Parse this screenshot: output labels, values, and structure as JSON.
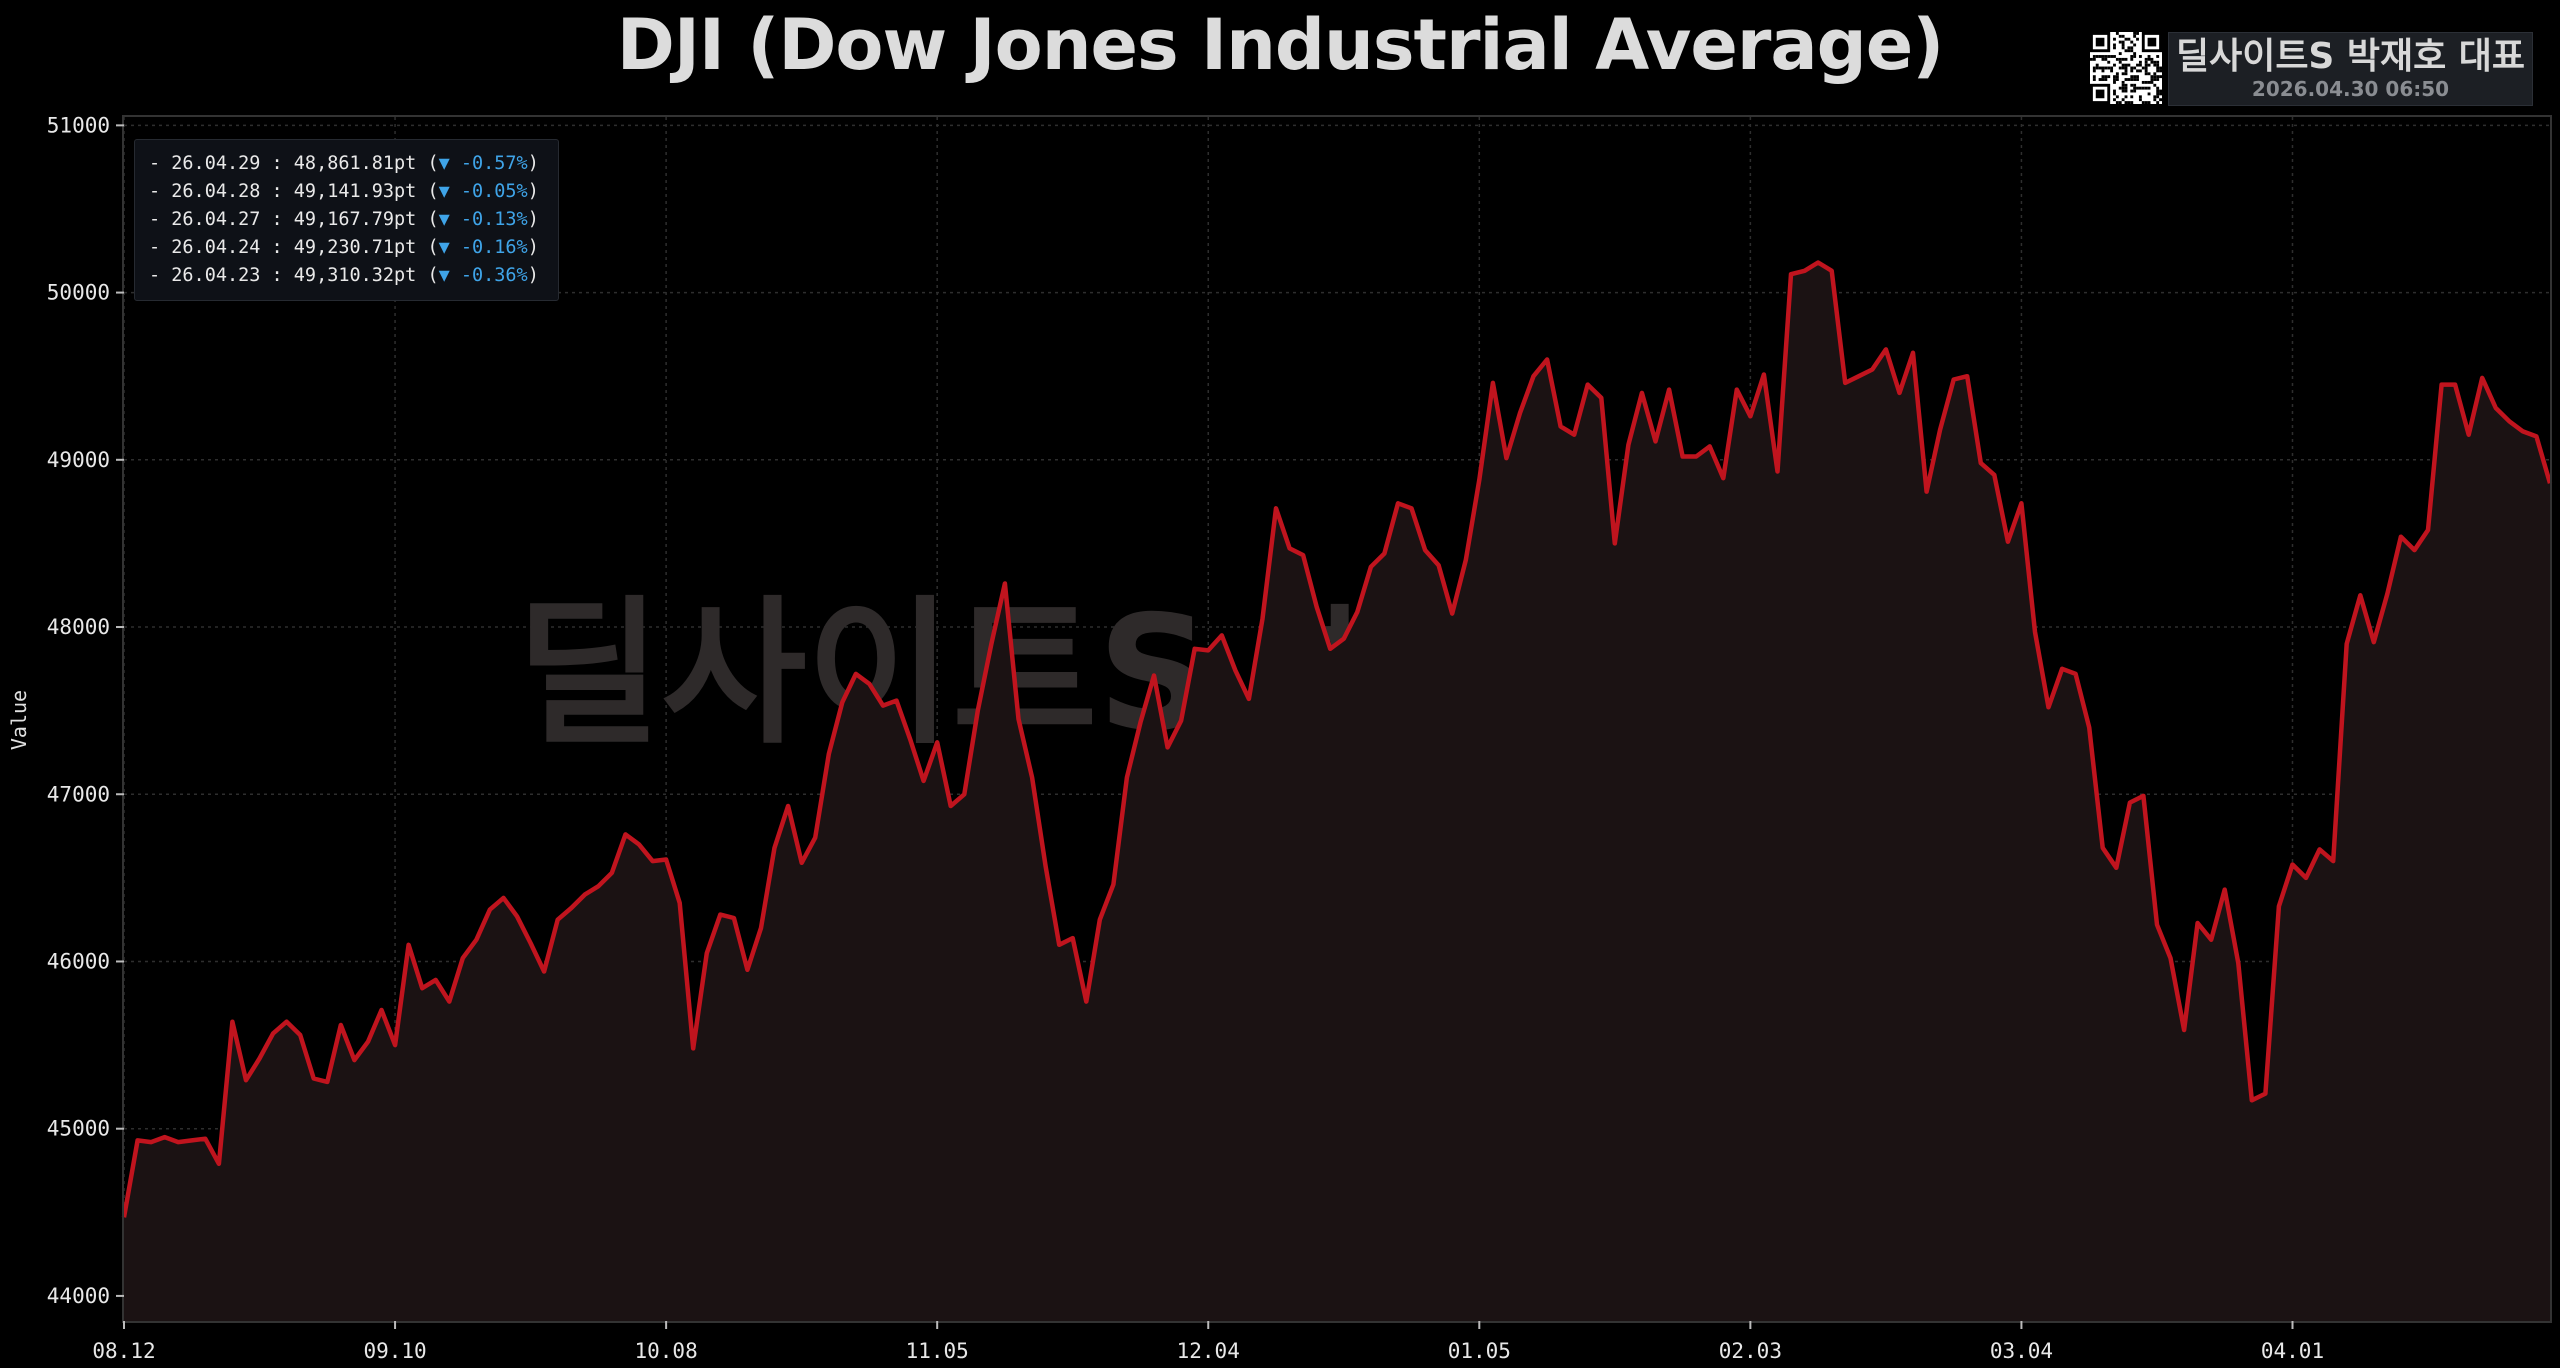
{
  "chart_data": {
    "type": "area",
    "title": "DJI (Dow Jones Industrial Average)",
    "ylabel": "Value",
    "xlabel": "",
    "ylim": [
      43850,
      51050
    ],
    "yticks": [
      44000,
      45000,
      46000,
      47000,
      48000,
      49000,
      50000,
      51000
    ],
    "xtick_labels": [
      "08.12",
      "09.10",
      "10.08",
      "11.05",
      "12.04",
      "01.05",
      "02.03",
      "03.04",
      "04.01"
    ],
    "xtick_indices": [
      0,
      20,
      40,
      60,
      80,
      100,
      120,
      140,
      160
    ],
    "grid": true,
    "series": [
      {
        "color": "#c0141e",
        "values": [
          44470,
          44930,
          44920,
          44950,
          44920,
          44930,
          44940,
          44790,
          45640,
          45290,
          45420,
          45570,
          45640,
          45560,
          45300,
          45280,
          45620,
          45410,
          45520,
          45710,
          45500,
          46100,
          45840,
          45890,
          45760,
          46020,
          46130,
          46310,
          46380,
          46270,
          46110,
          45940,
          46250,
          46320,
          46400,
          46450,
          46530,
          46760,
          46700,
          46600,
          46610,
          46350,
          45480,
          46050,
          46280,
          46260,
          45950,
          46200,
          46680,
          46930,
          46590,
          46740,
          47240,
          47550,
          47720,
          47660,
          47530,
          47560,
          47330,
          47080,
          47310,
          46930,
          47000,
          47500,
          47900,
          48260,
          47450,
          47100,
          46570,
          46100,
          46140,
          45760,
          46250,
          46460,
          47100,
          47430,
          47710,
          47280,
          47440,
          47870,
          47860,
          47950,
          47740,
          47570,
          48050,
          48710,
          48470,
          48430,
          48120,
          47870,
          47930,
          48090,
          48360,
          48440,
          48740,
          48710,
          48460,
          48370,
          48080,
          48400,
          48880,
          49460,
          49010,
          49280,
          49500,
          49600,
          49200,
          49150,
          49450,
          49370,
          48500,
          49090,
          49400,
          49110,
          49420,
          49020,
          49020,
          49080,
          48890,
          49420,
          49260,
          49510,
          48930,
          50110,
          50130,
          50180,
          50130,
          49460,
          49500,
          49540,
          49660,
          49400,
          49640,
          48810,
          49180,
          49480,
          49500,
          48980,
          48910,
          48510,
          48740,
          47970,
          47520,
          47750,
          47720,
          47400,
          46680,
          46560,
          46950,
          46990,
          46220,
          46020,
          45590,
          46230,
          46130,
          46430,
          45990,
          45170,
          45210,
          46330,
          46580,
          46500,
          46670,
          46600,
          47900,
          48190,
          47910,
          48200,
          48540,
          48460,
          48580,
          49450,
          49450,
          49150,
          49490,
          49310,
          49230,
          49170,
          49140,
          48860
        ]
      }
    ],
    "annotations": [
      {
        "date": "26.04.29",
        "value": "48,861.81pt",
        "change": "▼ -0.57%"
      },
      {
        "date": "26.04.28",
        "value": "49,141.93pt",
        "change": "▼ -0.05%"
      },
      {
        "date": "26.04.27",
        "value": "49,167.79pt",
        "change": "▼ -0.13%"
      },
      {
        "date": "26.04.24",
        "value": "49,230.71pt",
        "change": "▼ -0.16%"
      },
      {
        "date": "26.04.23",
        "value": "49,310.32pt",
        "change": "▼ -0.36%"
      }
    ]
  },
  "branding": {
    "name": "딜사이트S 박재호 대표",
    "timestamp": "2026.04.30 06:50",
    "watermark": "딜사이트S 박재호 대표",
    "qr_icon": "qr-code-icon"
  },
  "colors": {
    "background": "#000000",
    "line": "#c0141e",
    "fill": "#1b1213",
    "grid": "#2e2e2e",
    "change_down": "#3fa4e8"
  }
}
